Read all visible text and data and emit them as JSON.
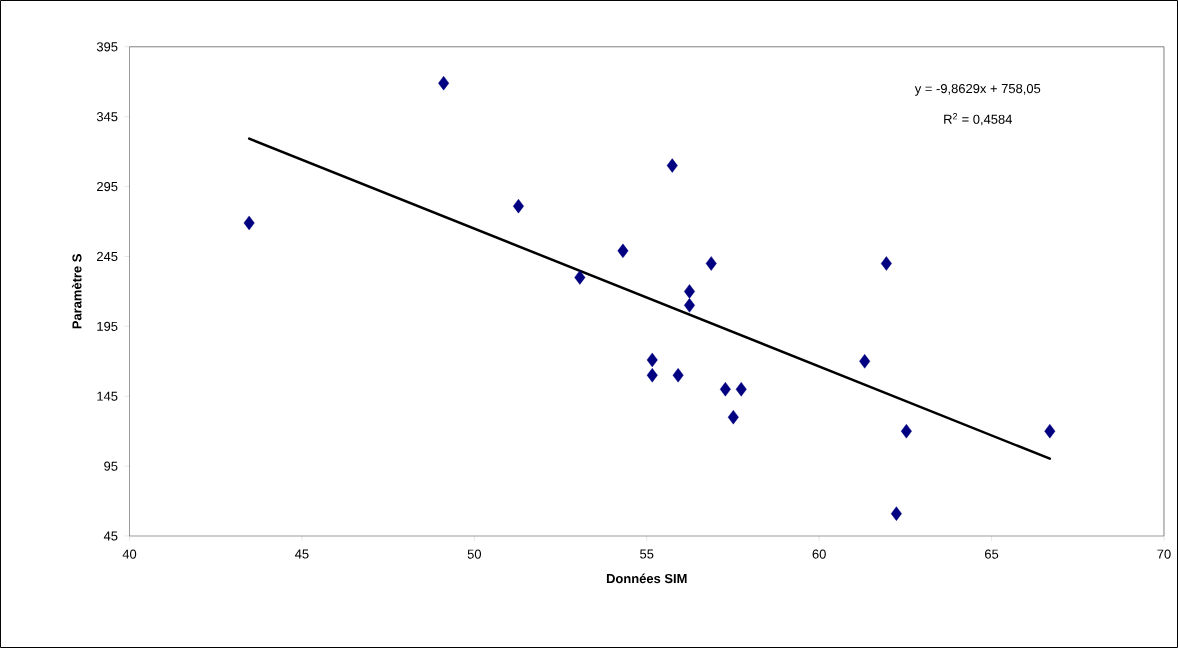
{
  "chart_data": {
    "type": "scatter",
    "xlabel": "Données SIM",
    "ylabel": "Paramètre S",
    "annotations": [
      "y = -9,8629x + 758,05",
      "R$^{2}$ = 0,4584"
    ],
    "marker": "diamond",
    "xlim": [
      40,
      70
    ],
    "xticks": [
      40,
      45,
      50,
      55,
      60,
      65,
      70
    ],
    "ylim": [
      45,
      395
    ],
    "yticks": [
      45,
      95,
      145,
      195,
      245,
      295,
      345,
      395
    ],
    "series": [
      {
        "color": "#000080",
        "x": [
          43.47,
          49.11,
          51.28,
          53.06,
          54.31,
          55.16,
          55.16,
          55.74,
          55.91,
          56.24,
          56.24,
          56.87,
          57.28,
          57.74,
          57.51,
          61.32,
          61.95,
          62.53,
          62.24,
          66.69
        ],
        "values": [
          269,
          369,
          281,
          230,
          249,
          171,
          160,
          310,
          160,
          220,
          210,
          240,
          150,
          150,
          130,
          170,
          240,
          120,
          61,
          120
        ]
      },
      {
        "type": "line",
        "color": "#000000",
        "marker": "none",
        "x": [
          43.47,
          66.69
        ],
        "values": [
          329.3,
          100.3
        ]
      }
    ]
  }
}
